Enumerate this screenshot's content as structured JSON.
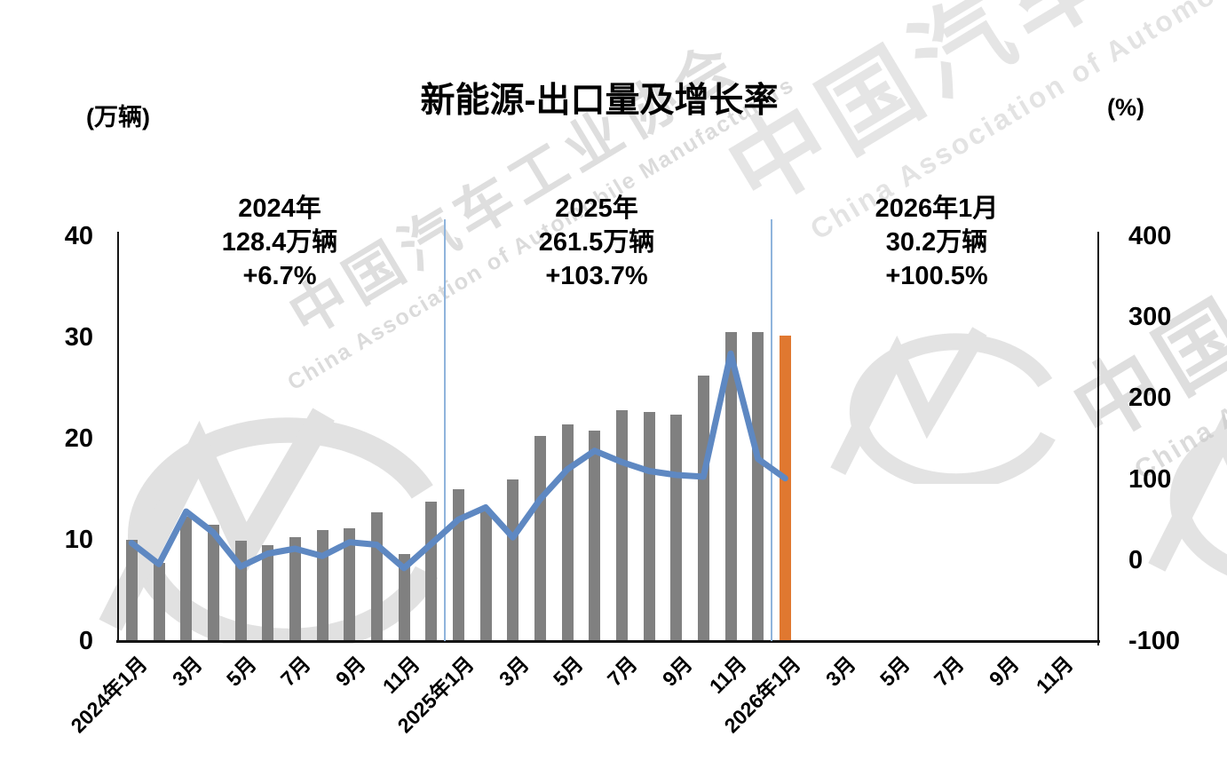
{
  "title": "新能源-出口量及增长率",
  "left_axis": {
    "title": "(万辆)",
    "min": 0,
    "max": 40,
    "ticks": [
      0,
      10,
      20,
      30,
      40
    ]
  },
  "right_axis": {
    "title": "(%)",
    "min": -100,
    "max": 400,
    "ticks": [
      -100,
      0,
      100,
      200,
      300,
      400
    ]
  },
  "annotations": [
    {
      "line1": "2024年",
      "line2": "128.4万辆",
      "line3": "+6.7%"
    },
    {
      "line1": "2025年",
      "line2": "261.5万辆",
      "line3": "+103.7%"
    },
    {
      "line1": "2026年1月",
      "line2": "30.2万辆",
      "line3": "+100.5%"
    }
  ],
  "watermark": {
    "zh": "中国汽车工业协会",
    "en": "China Association of Automobile Manufacturers"
  },
  "chart_data": {
    "type": "bar+line",
    "title": "新能源-出口量及增长率",
    "x_tick_labels": [
      "2024年1月",
      "3月",
      "5月",
      "7月",
      "9月",
      "11月",
      "2025年1月",
      "3月",
      "5月",
      "7月",
      "9月",
      "11月",
      "2026年1月",
      "3月",
      "5月",
      "7月",
      "9月",
      "11月"
    ],
    "months": [
      "2024-01",
      "2024-02",
      "2024-03",
      "2024-04",
      "2024-05",
      "2024-06",
      "2024-07",
      "2024-08",
      "2024-09",
      "2024-10",
      "2024-11",
      "2024-12",
      "2025-01",
      "2025-02",
      "2025-03",
      "2025-04",
      "2025-05",
      "2025-06",
      "2025-07",
      "2025-08",
      "2025-09",
      "2025-10",
      "2025-11",
      "2025-12",
      "2026-01"
    ],
    "bar_series": {
      "name": "出口量(万辆)",
      "values": [
        10.0,
        7.7,
        12.3,
        11.5,
        9.9,
        9.5,
        10.3,
        11.0,
        11.1,
        12.7,
        8.6,
        13.8,
        15.0,
        13.0,
        16.0,
        20.3,
        21.4,
        20.8,
        22.8,
        22.6,
        22.4,
        26.2,
        30.5,
        30.5,
        30.2
      ]
    },
    "line_series": {
      "name": "增长率(%)",
      "values": [
        21,
        -5,
        60,
        34,
        -8,
        8,
        14,
        5,
        22,
        19,
        -10,
        20,
        50,
        65,
        28,
        75,
        112,
        135,
        121,
        110,
        105,
        103,
        255,
        125,
        101
      ]
    },
    "yearly_totals": [
      {
        "period": "2024年",
        "volume_wan": 128.4,
        "growth_pct": 6.7
      },
      {
        "period": "2025年",
        "volume_wan": 261.5,
        "growth_pct": 103.7
      },
      {
        "period": "2026年1月",
        "volume_wan": 30.2,
        "growth_pct": 100.5
      }
    ],
    "left_ylim": [
      0,
      40
    ],
    "right_ylim": [
      -100,
      400
    ],
    "grid": false,
    "legend": "none",
    "total_slots": 36,
    "highlight_index": 24,
    "divider_after_slots": [
      12,
      24
    ],
    "bar_color": "#808080",
    "highlight_color": "#E07830",
    "line_color": "#5E88C2",
    "divider_color": "#8FB4DC",
    "axis_color": "#151515"
  }
}
